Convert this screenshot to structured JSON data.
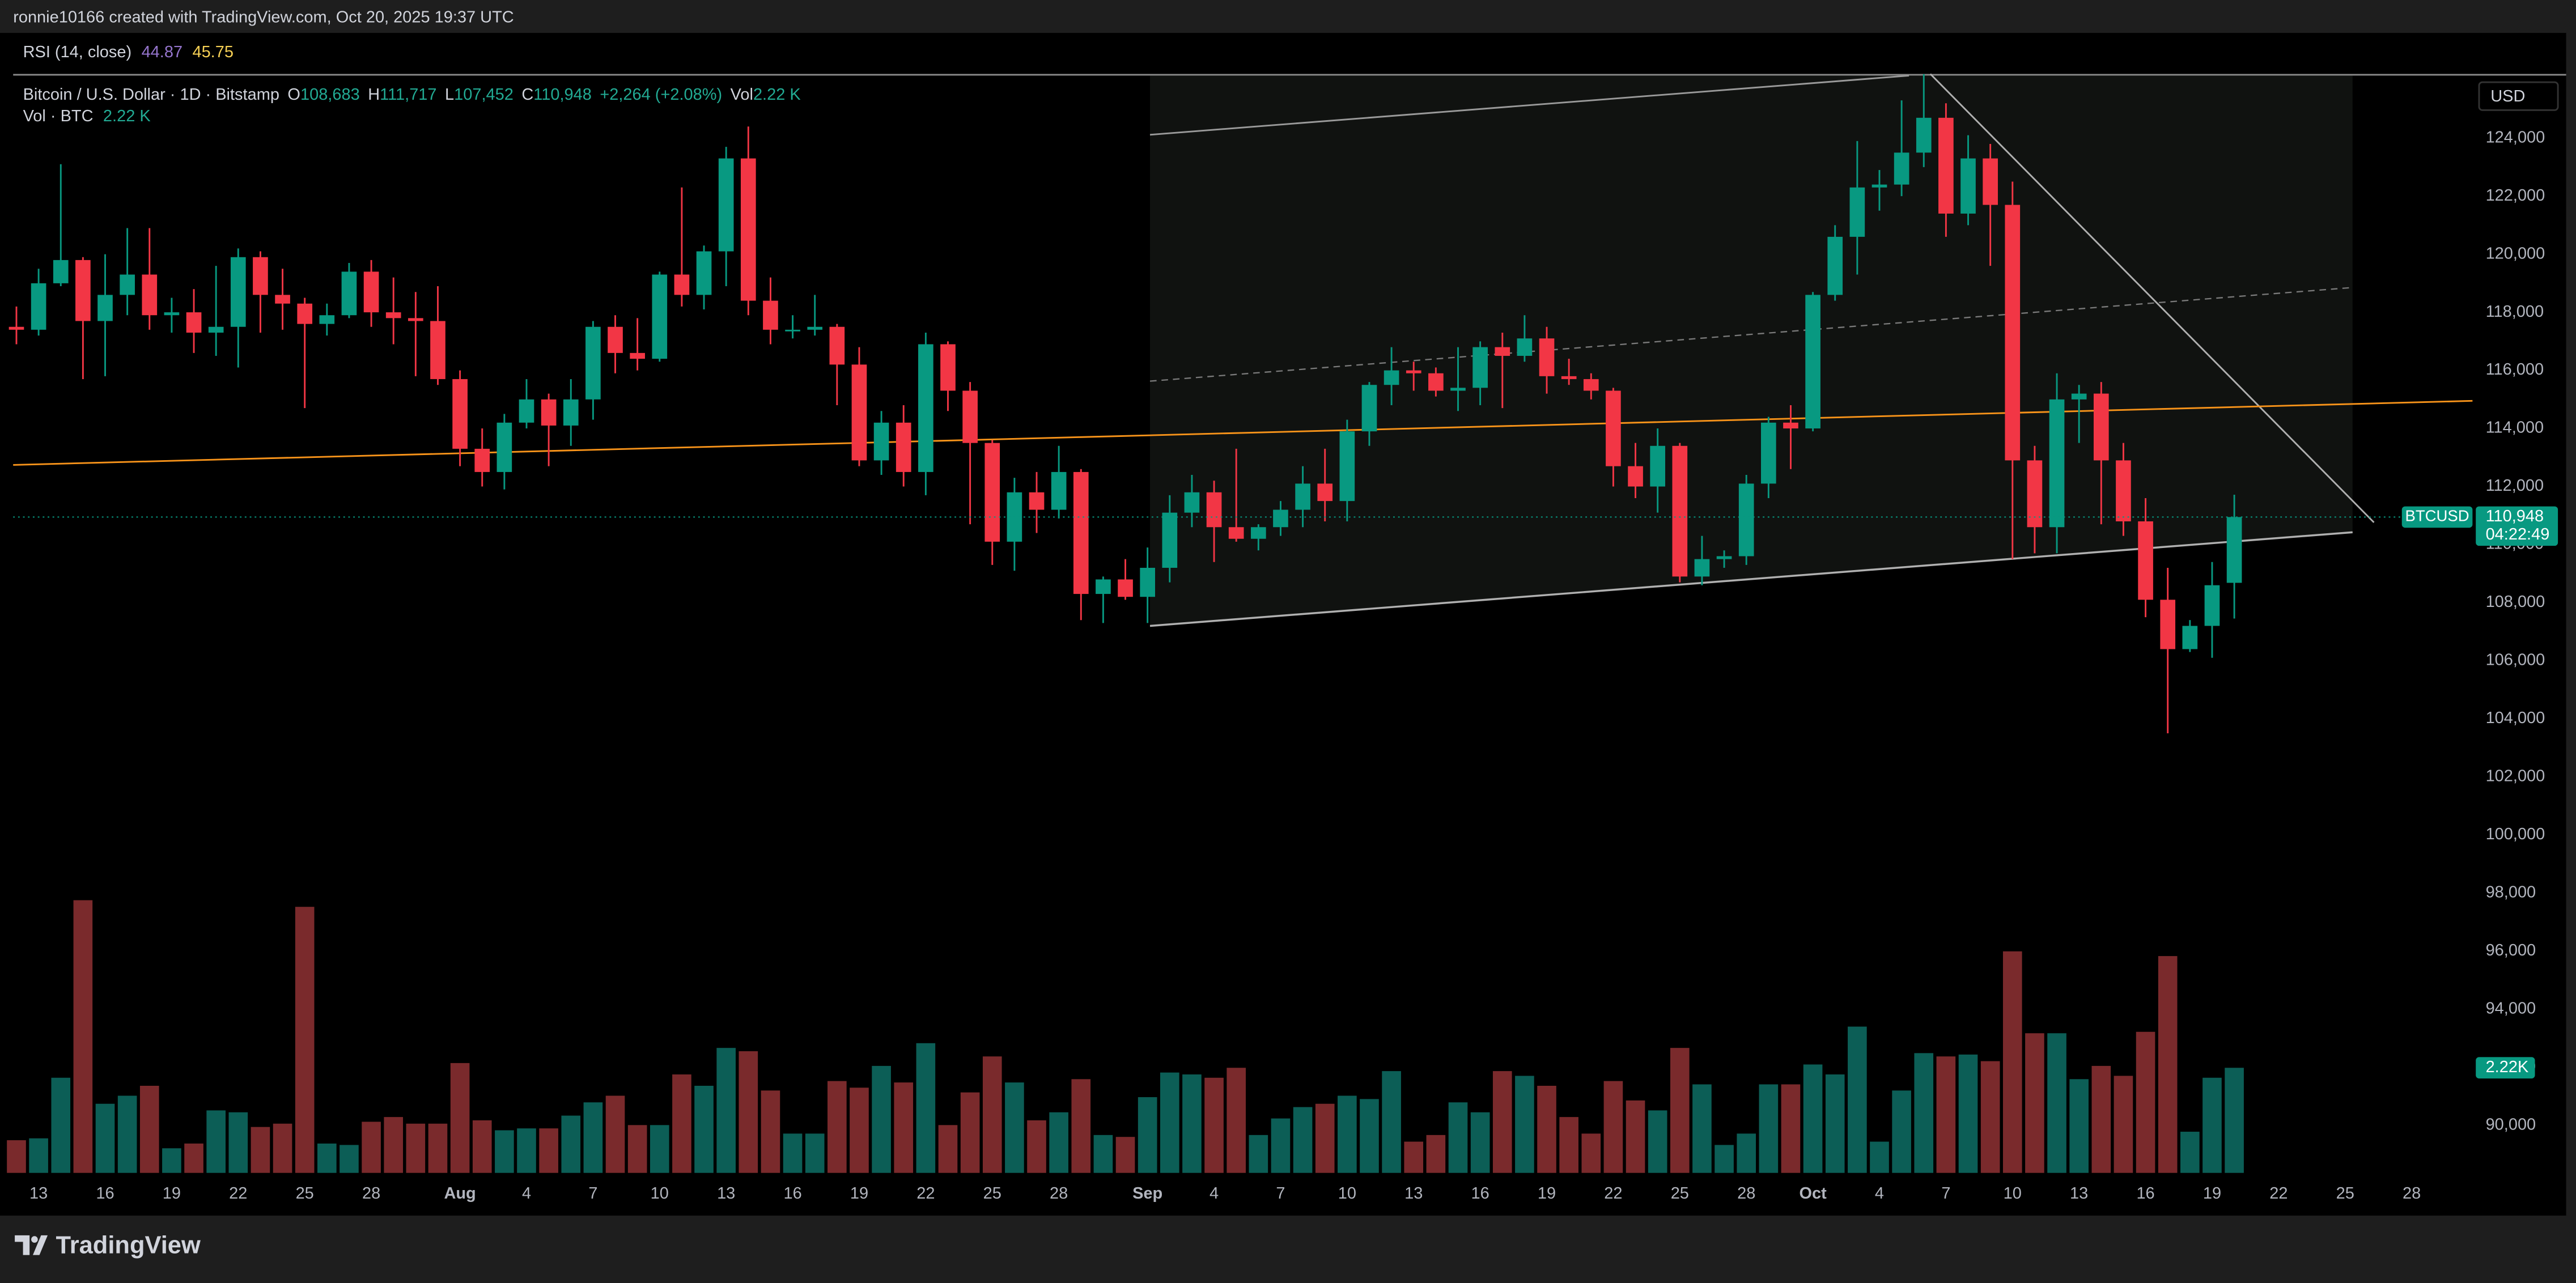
{
  "header": {
    "credit": "ronnie10166 created with TradingView.com, Oct 20, 2025 19:37 UTC"
  },
  "footer": {
    "brand": "TradingView"
  },
  "chart_data": {
    "type": "candlestick",
    "rsi": {
      "name": "RSI (14, close)",
      "values": [
        44.87,
        45.75
      ],
      "colors": [
        "#9575cd",
        "#f7d155"
      ]
    },
    "legend": {
      "symbol": "Bitcoin / U.S. Dollar · 1D · Bitstamp",
      "ohlc": [
        {
          "key": "O",
          "value": "108,683"
        },
        {
          "key": "H",
          "value": "111,717"
        },
        {
          "key": "L",
          "value": "107,452"
        },
        {
          "key": "C",
          "value": "110,948"
        }
      ],
      "change": "+2,264 (+2.08%)",
      "vol_key": "Vol",
      "vol_value": "2.22 K"
    },
    "volume_legend": {
      "name": "Vol · BTC",
      "value": "2.22 K"
    },
    "currency": "USD",
    "ticker": "BTCUSD",
    "last_price_label": "110,948",
    "countdown": "04:22:49",
    "volume_label": "2.22K",
    "up_color": "#089981",
    "down_color": "#f23645",
    "volume_up_color": "#0c5e56",
    "volume_down_color": "#7a2a2c",
    "ylim": [
      88360,
      127510
    ],
    "yticks": [
      {
        "value": 90000,
        "label": "90,000"
      },
      {
        "value": 92000,
        "label": "92,000"
      },
      {
        "value": 94000,
        "label": "94,000"
      },
      {
        "value": 96000,
        "label": "96,000"
      },
      {
        "value": 98000,
        "label": "98,000"
      },
      {
        "value": 100000,
        "label": "100,000"
      },
      {
        "value": 102000,
        "label": "102,000"
      },
      {
        "value": 104000,
        "label": "104,000"
      },
      {
        "value": 106000,
        "label": "106,000"
      },
      {
        "value": 108000,
        "label": "108,000"
      },
      {
        "value": 110000,
        "label": "110,000"
      },
      {
        "value": 112000,
        "label": "112,000"
      },
      {
        "value": 114000,
        "label": "114,000"
      },
      {
        "value": 116000,
        "label": "116,000"
      },
      {
        "value": 118000,
        "label": "118,000"
      },
      {
        "value": 120000,
        "label": "120,000"
      },
      {
        "value": 122000,
        "label": "122,000"
      },
      {
        "value": 124000,
        "label": "124,000"
      }
    ],
    "xticks": [
      {
        "value": "2025-07-13",
        "label": "13"
      },
      {
        "value": "2025-07-16",
        "label": "16"
      },
      {
        "value": "2025-07-19",
        "label": "19"
      },
      {
        "value": "2025-07-22",
        "label": "22"
      },
      {
        "value": "2025-07-25",
        "label": "25"
      },
      {
        "value": "2025-07-28",
        "label": "28"
      },
      {
        "value": "2025-08-01",
        "label": "Aug"
      },
      {
        "value": "2025-08-04",
        "label": "4"
      },
      {
        "value": "2025-08-07",
        "label": "7"
      },
      {
        "value": "2025-08-10",
        "label": "10"
      },
      {
        "value": "2025-08-13",
        "label": "13"
      },
      {
        "value": "2025-08-16",
        "label": "16"
      },
      {
        "value": "2025-08-19",
        "label": "19"
      },
      {
        "value": "2025-08-22",
        "label": "22"
      },
      {
        "value": "2025-08-25",
        "label": "25"
      },
      {
        "value": "2025-08-28",
        "label": "28"
      },
      {
        "value": "2025-09-01",
        "label": "Sep"
      },
      {
        "value": "2025-09-04",
        "label": "4"
      },
      {
        "value": "2025-09-07",
        "label": "7"
      },
      {
        "value": "2025-09-10",
        "label": "10"
      },
      {
        "value": "2025-09-13",
        "label": "13"
      },
      {
        "value": "2025-09-16",
        "label": "16"
      },
      {
        "value": "2025-09-19",
        "label": "19"
      },
      {
        "value": "2025-09-22",
        "label": "22"
      },
      {
        "value": "2025-09-25",
        "label": "25"
      },
      {
        "value": "2025-09-28",
        "label": "28"
      },
      {
        "value": "2025-10-01",
        "label": "Oct"
      },
      {
        "value": "2025-10-04",
        "label": "4"
      },
      {
        "value": "2025-10-07",
        "label": "7"
      },
      {
        "value": "2025-10-10",
        "label": "10"
      },
      {
        "value": "2025-10-13",
        "label": "13"
      },
      {
        "value": "2025-10-16",
        "label": "16"
      },
      {
        "value": "2025-10-19",
        "label": "19"
      },
      {
        "value": "2025-10-22",
        "label": "22"
      },
      {
        "value": "2025-10-25",
        "label": "25"
      },
      {
        "value": "2025-10-28",
        "label": "28"
      }
    ],
    "x": [
      "2025-07-12",
      "2025-07-13",
      "2025-07-14",
      "2025-07-15",
      "2025-07-16",
      "2025-07-17",
      "2025-07-18",
      "2025-07-19",
      "2025-07-20",
      "2025-07-21",
      "2025-07-22",
      "2025-07-23",
      "2025-07-24",
      "2025-07-25",
      "2025-07-26",
      "2025-07-27",
      "2025-07-28",
      "2025-07-29",
      "2025-07-30",
      "2025-07-31",
      "2025-08-01",
      "2025-08-02",
      "2025-08-03",
      "2025-08-04",
      "2025-08-05",
      "2025-08-06",
      "2025-08-07",
      "2025-08-08",
      "2025-08-09",
      "2025-08-10",
      "2025-08-11",
      "2025-08-12",
      "2025-08-13",
      "2025-08-14",
      "2025-08-15",
      "2025-08-16",
      "2025-08-17",
      "2025-08-18",
      "2025-08-19",
      "2025-08-20",
      "2025-08-21",
      "2025-08-22",
      "2025-08-23",
      "2025-08-24",
      "2025-08-25",
      "2025-08-26",
      "2025-08-27",
      "2025-08-28",
      "2025-08-29",
      "2025-08-30",
      "2025-08-31",
      "2025-09-01",
      "2025-09-02",
      "2025-09-03",
      "2025-09-04",
      "2025-09-05",
      "2025-09-06",
      "2025-09-07",
      "2025-09-08",
      "2025-09-09",
      "2025-09-10",
      "2025-09-11",
      "2025-09-12",
      "2025-09-13",
      "2025-09-14",
      "2025-09-15",
      "2025-09-16",
      "2025-09-17",
      "2025-09-18",
      "2025-09-19",
      "2025-09-20",
      "2025-09-21",
      "2025-09-22",
      "2025-09-23",
      "2025-09-24",
      "2025-09-25",
      "2025-09-26",
      "2025-09-27",
      "2025-09-28",
      "2025-09-29",
      "2025-09-30",
      "2025-10-01",
      "2025-10-02",
      "2025-10-03",
      "2025-10-04",
      "2025-10-05",
      "2025-10-06",
      "2025-10-07",
      "2025-10-08",
      "2025-10-09",
      "2025-10-10",
      "2025-10-11",
      "2025-10-12",
      "2025-10-13",
      "2025-10-14",
      "2025-10-15",
      "2025-10-16",
      "2025-10-17",
      "2025-10-18",
      "2025-10-19",
      "2025-10-20"
    ],
    "open": [
      117500,
      117400,
      119000,
      119800,
      117700,
      118600,
      119300,
      117900,
      118000,
      117300,
      117500,
      119900,
      118600,
      118300,
      117600,
      117900,
      119400,
      118000,
      117800,
      117700,
      115700,
      113300,
      112500,
      114200,
      115000,
      114100,
      115000,
      117500,
      116600,
      116400,
      119300,
      118600,
      120100,
      123300,
      118400,
      117350,
      117400,
      117500,
      116200,
      112900,
      114200,
      112500,
      116900,
      115300,
      113500,
      110100,
      111800,
      111200,
      112500,
      108300,
      108800,
      108200,
      109200,
      111100,
      111800,
      110600,
      110200,
      110600,
      111200,
      112100,
      111500,
      113900,
      115500,
      116000,
      115900,
      115300,
      115400,
      116800,
      116500,
      117100,
      115800,
      115700,
      115300,
      112700,
      112000,
      113400,
      108900,
      109500,
      109600,
      112100,
      114200,
      114000,
      118600,
      120600,
      122300,
      122400,
      123500,
      124700,
      121400,
      123300,
      121700,
      112900,
      110600,
      115000,
      115200,
      112900,
      110800,
      108100,
      106400,
      107200,
      108683
    ],
    "high": [
      118200,
      119500,
      123100,
      119900,
      120000,
      120900,
      120900,
      118500,
      118800,
      119600,
      120200,
      120100,
      119500,
      118500,
      118300,
      119700,
      119800,
      119200,
      118700,
      118900,
      116000,
      114000,
      114500,
      115700,
      115200,
      115700,
      117700,
      117900,
      117800,
      119400,
      122300,
      120300,
      123700,
      124400,
      119200,
      117900,
      118600,
      117600,
      116800,
      114600,
      114800,
      117300,
      117000,
      115600,
      113600,
      112300,
      112500,
      113400,
      112600,
      108900,
      109500,
      109900,
      111700,
      112400,
      112200,
      113300,
      110700,
      111500,
      112700,
      113300,
      114300,
      115600,
      116800,
      116300,
      116100,
      116800,
      117000,
      117300,
      117900,
      117500,
      116400,
      115900,
      115400,
      113500,
      114000,
      113500,
      110300,
      109800,
      112400,
      114400,
      114800,
      118700,
      121000,
      123900,
      122900,
      125300,
      126200,
      125200,
      124100,
      123800,
      122500,
      113400,
      115900,
      115500,
      115600,
      113500,
      111600,
      109200,
      107400,
      109400,
      111717
    ],
    "low": [
      116900,
      117200,
      118900,
      115700,
      115800,
      117900,
      117400,
      117300,
      116600,
      116500,
      116100,
      117300,
      117400,
      114700,
      117200,
      117800,
      117500,
      116900,
      115800,
      115500,
      112700,
      112000,
      111900,
      114000,
      112700,
      113400,
      114300,
      115900,
      116000,
      116300,
      118200,
      118100,
      118900,
      117900,
      116900,
      117100,
      117200,
      114800,
      112700,
      112400,
      112000,
      111700,
      114600,
      110700,
      109300,
      109100,
      110400,
      110900,
      107400,
      107300,
      108100,
      107300,
      108700,
      110600,
      109400,
      110100,
      109800,
      110300,
      110600,
      110800,
      110800,
      113400,
      114800,
      115300,
      115100,
      114600,
      114800,
      114700,
      116300,
      115200,
      115500,
      115000,
      112000,
      111600,
      111100,
      108700,
      108600,
      109200,
      109300,
      111600,
      112600,
      113900,
      118400,
      119300,
      121500,
      122000,
      123000,
      120600,
      121000,
      119600,
      109500,
      109700,
      109700,
      113500,
      110700,
      110300,
      107500,
      103500,
      106300,
      106100,
      107452
    ],
    "close": [
      117400,
      119000,
      119800,
      117700,
      118600,
      119300,
      117900,
      118000,
      117300,
      117500,
      119900,
      118600,
      118300,
      117600,
      117900,
      119400,
      118000,
      117800,
      117700,
      115700,
      113300,
      112500,
      114200,
      115000,
      114100,
      115000,
      117500,
      116600,
      116400,
      119300,
      118600,
      120100,
      123300,
      118400,
      117400,
      117400,
      117500,
      116200,
      112900,
      114200,
      112500,
      116900,
      115300,
      113500,
      110100,
      111800,
      111200,
      112500,
      108300,
      108800,
      108200,
      109200,
      111100,
      111800,
      110600,
      110200,
      110600,
      111200,
      112100,
      111500,
      113900,
      115500,
      116000,
      115900,
      115300,
      115400,
      116800,
      116500,
      117100,
      115800,
      115700,
      115300,
      112700,
      112000,
      113400,
      108900,
      109500,
      109600,
      112100,
      114200,
      114000,
      118600,
      120600,
      122300,
      122400,
      123500,
      124700,
      121400,
      123300,
      121700,
      112900,
      110600,
      115000,
      115200,
      112900,
      110800,
      108100,
      106400,
      107200,
      108600,
      110948
    ],
    "volume": [
      690,
      730,
      2010,
      5760,
      1460,
      1630,
      1840,
      520,
      620,
      1320,
      1280,
      970,
      1040,
      5620,
      620,
      590,
      1080,
      1180,
      1040,
      1040,
      2320,
      1110,
      900,
      940,
      940,
      1210,
      1490,
      1630,
      1010,
      1010,
      2080,
      1840,
      2640,
      2570,
      1740,
      830,
      830,
      1940,
      1800,
      2260,
      1910,
      2740,
      1010,
      1700,
      2460,
      1910,
      1110,
      1280,
      1980,
      800,
      760,
      1600,
      2120,
      2080,
      2010,
      2220,
      800,
      1150,
      1390,
      1460,
      1630,
      1560,
      2150,
      660,
      800,
      1490,
      1280,
      2150,
      2050,
      1840,
      1180,
      830,
      1940,
      1530,
      1320,
      2640,
      1870,
      590,
      830,
      1870,
      1870,
      2290,
      2080,
      3090,
      660,
      1740,
      2530,
      2460,
      2500,
      2360,
      4680,
      2950,
      2950,
      1980,
      2260,
      2050,
      2980,
      4580,
      870,
      2010,
      2220
    ]
  }
}
